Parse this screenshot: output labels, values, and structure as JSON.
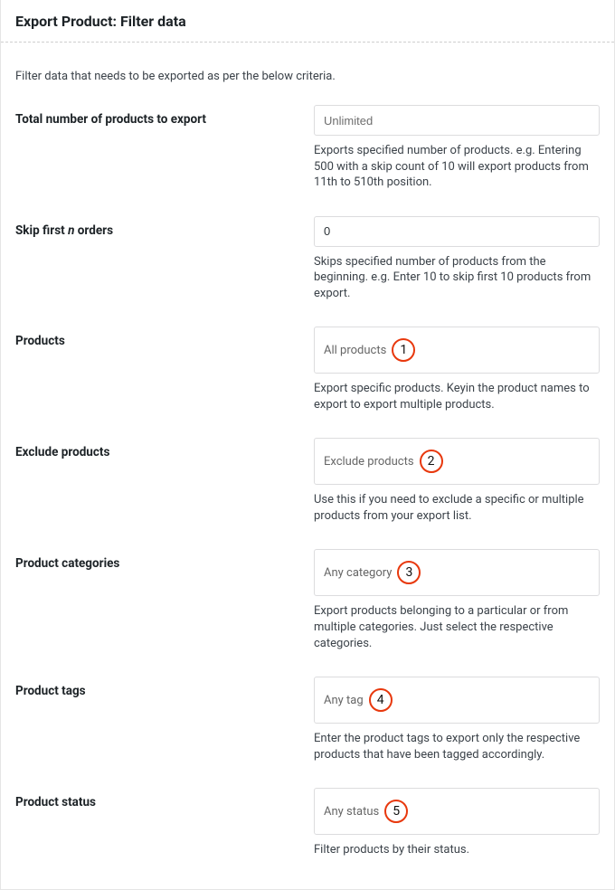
{
  "header": {
    "title": "Export Product: Filter data"
  },
  "intro": "Filter data that needs to be exported as per the below criteria.",
  "badgeColor": "#e8380d",
  "fields": {
    "total": {
      "label": "Total number of products to export",
      "placeholder": "Unlimited",
      "value": "",
      "help": "Exports specified number of products. e.g. Entering 500 with a skip count of 10 will export products from 11th to 510th position."
    },
    "skip": {
      "labelPrefix": "Skip first ",
      "labelEm": "n",
      "labelSuffix": " orders",
      "value": "0",
      "help": "Skips specified number of products from the beginning. e.g. Enter 10 to skip first 10 products from export."
    },
    "products": {
      "label": "Products",
      "placeholder": "All products",
      "badge": "1",
      "help": "Export specific products. Keyin the product names to export to export multiple products."
    },
    "excludeProducts": {
      "label": "Exclude products",
      "placeholder": "Exclude products",
      "badge": "2",
      "help": "Use this if you need to exclude a specific or multiple products from your export list."
    },
    "categories": {
      "label": "Product categories",
      "placeholder": "Any category",
      "badge": "3",
      "help": "Export products belonging to a particular or from multiple categories. Just select the respective categories."
    },
    "tags": {
      "label": "Product tags",
      "placeholder": "Any tag",
      "badge": "4",
      "help": "Enter the product tags to export only the respective products that have been tagged accordingly."
    },
    "status": {
      "label": "Product status",
      "placeholder": "Any status",
      "badge": "5",
      "help": "Filter products by their status."
    }
  }
}
